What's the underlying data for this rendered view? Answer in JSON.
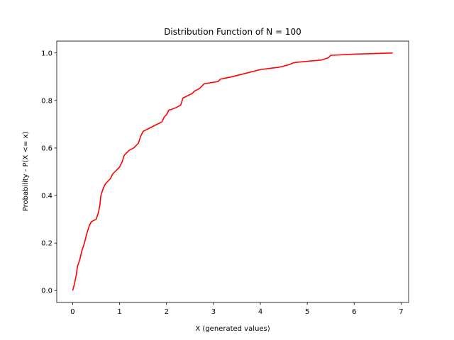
{
  "chart_data": {
    "type": "line",
    "title": "Distribution Function of N = 100",
    "xlabel": "X (generated values)",
    "ylabel": "Probability - P(X <= x)",
    "xlim": [
      -0.34,
      7.16
    ],
    "ylim": [
      -0.05,
      1.05
    ],
    "xticks": [
      0,
      1,
      2,
      3,
      4,
      5,
      6,
      7
    ],
    "yticks": [
      0.0,
      0.2,
      0.4,
      0.6,
      0.8,
      1.0
    ],
    "ytick_labels": [
      "0.0",
      "0.2",
      "0.4",
      "0.6",
      "0.8",
      "1.0"
    ],
    "grid": false,
    "legend": false,
    "series": [
      {
        "color": "#ff0000",
        "x": [
          0.0,
          0.04,
          0.08,
          0.1,
          0.15,
          0.2,
          0.25,
          0.3,
          0.35,
          0.37,
          0.4,
          0.5,
          0.55,
          0.58,
          0.6,
          0.65,
          0.7,
          0.75,
          0.8,
          0.85,
          0.9,
          1.0,
          1.05,
          1.1,
          1.15,
          1.2,
          1.3,
          1.4,
          1.45,
          1.5,
          1.6,
          1.7,
          1.9,
          1.95,
          2.0,
          2.05,
          2.1,
          2.2,
          2.3,
          2.35,
          2.45,
          2.55,
          2.6,
          2.7,
          2.8,
          3.1,
          3.15,
          3.4,
          3.6,
          4.0,
          4.4,
          4.6,
          4.7,
          4.75,
          5.0,
          5.3,
          5.45,
          5.5,
          6.0,
          6.82
        ],
        "y": [
          0.0,
          0.03,
          0.07,
          0.1,
          0.13,
          0.17,
          0.2,
          0.24,
          0.27,
          0.28,
          0.29,
          0.3,
          0.33,
          0.36,
          0.4,
          0.43,
          0.45,
          0.46,
          0.47,
          0.49,
          0.5,
          0.52,
          0.54,
          0.57,
          0.58,
          0.59,
          0.6,
          0.62,
          0.65,
          0.67,
          0.68,
          0.69,
          0.71,
          0.73,
          0.74,
          0.76,
          0.762,
          0.77,
          0.78,
          0.81,
          0.82,
          0.83,
          0.84,
          0.85,
          0.87,
          0.88,
          0.89,
          0.9,
          0.91,
          0.93,
          0.94,
          0.95,
          0.958,
          0.96,
          0.965,
          0.97,
          0.98,
          0.99,
          0.995,
          1.0
        ]
      }
    ]
  }
}
